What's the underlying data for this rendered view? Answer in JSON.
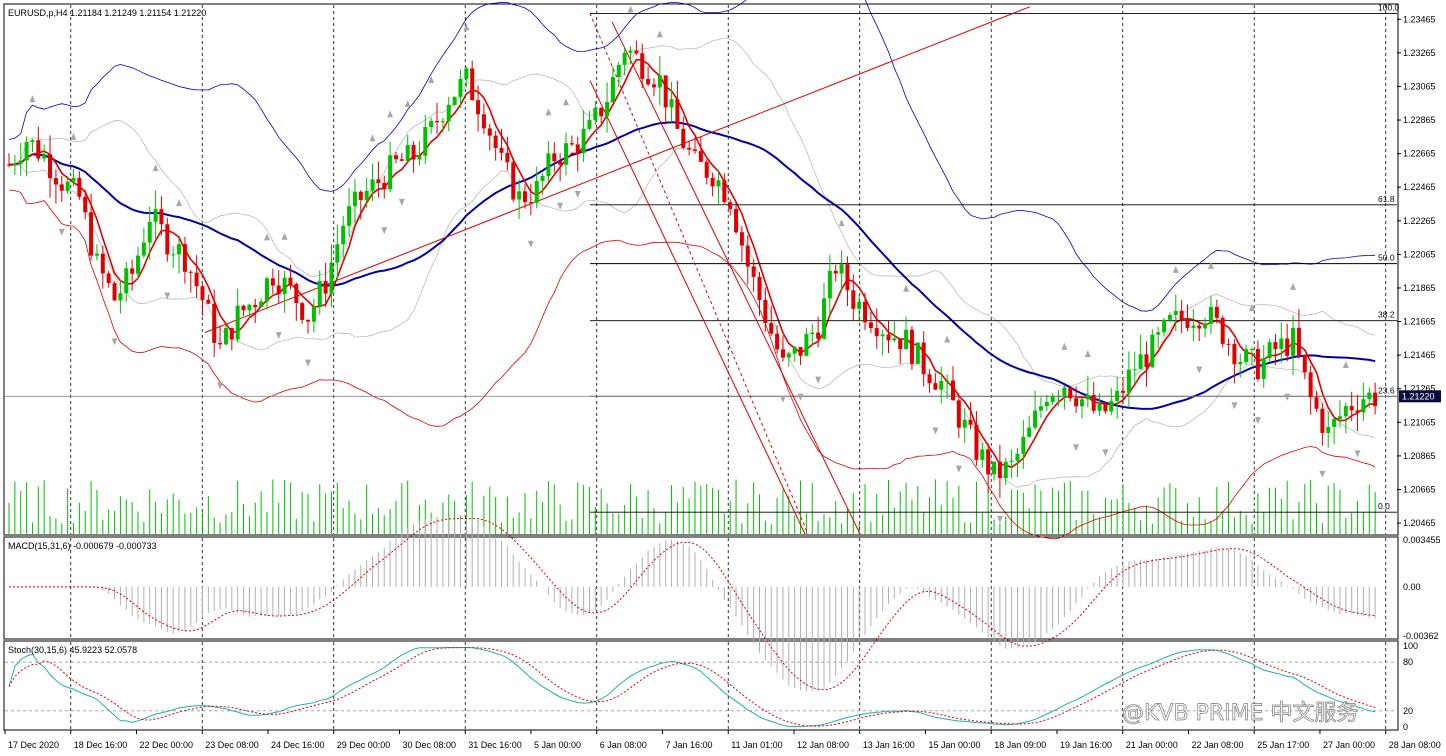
{
  "header": {
    "symbol_info": "EURUSD,p,H4  1.21184 1.21249 1.21154 1.21220"
  },
  "indicators": {
    "macd_label": "MACD(15,31,6) -0.000679 -0.000733",
    "stoch_label": "Stoch(30,15,6) 45.9223 52.0578"
  },
  "current_price": "1.21220",
  "colors": {
    "bull": "#00c000",
    "bear": "#e00000",
    "bollinger": "#0000cc",
    "ma": "#0000aa",
    "channel": "#dd0000",
    "macd_hist": "#b0b0b0",
    "macd_signal": "#e00000",
    "stoch_main": "#20b2aa",
    "stoch_signal": "#e00000",
    "fractal": "#a8a8a8",
    "volume": "#00c000"
  },
  "watermark": "@KVB PRIME 中文服务",
  "chart_data": [
    {
      "type": "candlestick",
      "title": "EURUSD,p,H4",
      "ylim": [
        1.204,
        1.2355
      ],
      "price_ticks": [
        "1.23465",
        "1.23265",
        "1.23065",
        "1.22865",
        "1.22665",
        "1.22465",
        "1.22265",
        "1.22065",
        "1.21865",
        "1.21665",
        "1.21465",
        "1.21265",
        "1.21065",
        "1.20865",
        "1.20665",
        "1.20465"
      ],
      "time_labels": [
        "17 Dec 2020",
        "18 Dec 16:00",
        "22 Dec 00:00",
        "23 Dec 08:00",
        "24 Dec 16:00",
        "29 Dec 00:00",
        "30 Dec 08:00",
        "31 Dec 16:00",
        "5 Jan 00:00",
        "6 Jan 08:00",
        "7 Jan 16:00",
        "11 Jan 01:00",
        "12 Jan 08:00",
        "13 Jan 16:00",
        "15 Jan 00:00",
        "18 Jan 09:00",
        "19 Jan 16:00",
        "21 Jan 00:00",
        "22 Jan 08:00",
        "25 Jan 17:00",
        "27 Jan 00:00",
        "28 Jan 08:00"
      ],
      "fibonacci": [
        {
          "level": "100.0",
          "price": 1.235
        },
        {
          "level": "61.8",
          "price": 1.2236
        },
        {
          "level": "50.0",
          "price": 1.2201
        },
        {
          "level": "38.2",
          "price": 1.2167
        },
        {
          "level": "23.6",
          "price": 1.2122
        },
        {
          "level": "0.0",
          "price": 1.2053
        }
      ],
      "close_path": [
        1.226,
        1.2275,
        1.2265,
        1.225,
        1.224,
        1.22,
        1.218,
        1.2195,
        1.223,
        1.2215,
        1.2205,
        1.218,
        1.215,
        1.217,
        1.218,
        1.2195,
        1.2185,
        1.217,
        1.219,
        1.2225,
        1.224,
        1.225,
        1.226,
        1.2265,
        1.228,
        1.23,
        1.231,
        1.229,
        1.226,
        1.224,
        1.2245,
        1.2265,
        1.227,
        1.228,
        1.23,
        1.233,
        1.232,
        1.231,
        1.228,
        1.226,
        1.2255,
        1.224,
        1.22,
        1.217,
        1.214,
        1.215,
        1.2165,
        1.22,
        1.218,
        1.217,
        1.216,
        1.2155,
        1.214,
        1.213,
        1.211,
        1.209,
        1.2075,
        1.208,
        1.21,
        1.2125,
        1.213,
        1.212,
        1.211,
        1.212,
        1.214,
        1.215,
        1.2165,
        1.217,
        1.2172,
        1.216,
        1.2145,
        1.214,
        1.215,
        1.2155,
        1.212,
        1.21,
        1.2115,
        1.2122
      ]
    },
    {
      "type": "histogram+line",
      "title": "MACD(15,31,6)",
      "ylim": [
        -0.00362,
        0.003455
      ],
      "ticks": [
        "0.003455",
        "0.00",
        "-0.00362"
      ]
    },
    {
      "type": "line",
      "title": "Stoch(30,15,6)",
      "ylim": [
        0,
        100
      ],
      "ticks": [
        "100",
        "80",
        "20",
        "0"
      ]
    }
  ]
}
